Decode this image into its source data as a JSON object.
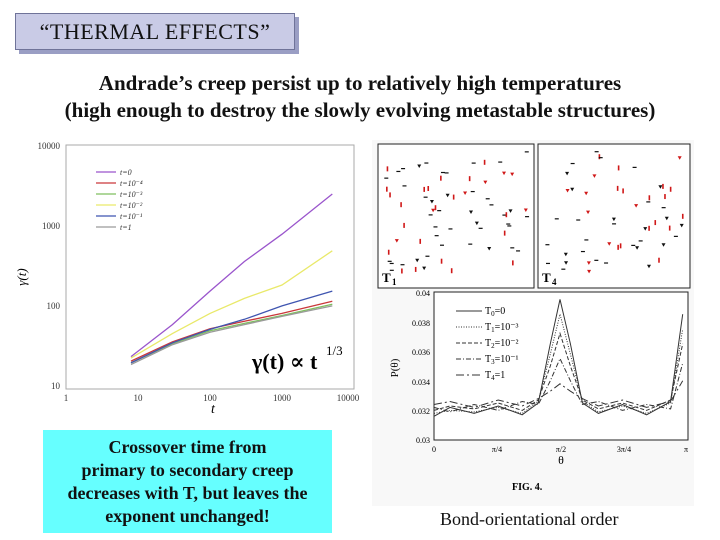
{
  "title": "“THERMAL EFFECTS”",
  "headline": {
    "line1": "Andrade’s creep persist up to relatively high temperatures",
    "line2": "(high enough to destroy the slowly evolving metastable structures)"
  },
  "creep_plot": {
    "ylabel": "γ(t)",
    "xlabel": "t",
    "y_ticks": [
      "10000",
      "1000",
      "100",
      "10"
    ],
    "x_ticks": [
      "1",
      "10",
      "100",
      "1000",
      "10000"
    ],
    "legend": [
      "t=0",
      "t=10⁻⁴",
      "t=10⁻³",
      "t=10⁻²",
      "t=10⁻¹",
      "t=1"
    ],
    "annotation": "γ(t) ∝ t",
    "annotation_exp": "1/3",
    "colors": {
      "t=0": "#9a55cc",
      "t=10⁻⁴": "#c9383a",
      "t=10⁻³": "#7fbf5f",
      "t=10⁻²": "#e9e96a",
      "t=10⁻¹": "#3f55b0",
      "t=1": "#9a9a9a"
    }
  },
  "snapshots": {
    "left_label": "T",
    "left_sub": "1",
    "right_label": "T",
    "right_sub": "4"
  },
  "order_plot": {
    "ylabel": "P(θ)",
    "xlabel": "θ",
    "y_ticks": [
      "0.04",
      "0.038",
      "0.036",
      "0.034",
      "0.032",
      "0.03"
    ],
    "x_ticks": [
      "0",
      "π/4",
      "π/2",
      "3π/4",
      "π"
    ],
    "legend": [
      {
        "label": "T",
        "sub": "0",
        "rest": "=0"
      },
      {
        "label": "T",
        "sub": "1",
        "rest": "=10⁻³"
      },
      {
        "label": "T",
        "sub": "2",
        "rest": "=10⁻²"
      },
      {
        "label": "T",
        "sub": "3",
        "rest": "=10⁻¹"
      },
      {
        "label": "T",
        "sub": "4",
        "rest": "=1"
      }
    ],
    "figure": "FIG. 4."
  },
  "callout": "Crossover time from\nprimary to secondary creep\ndecreases with T, but leaves the\nexponent unchanged!",
  "caption": "Bond-orientational order",
  "chart_data": [
    {
      "type": "line",
      "title": "",
      "xlabel": "t",
      "ylabel": "γ(t)",
      "xscale": "log",
      "yscale": "log",
      "xlim": [
        1,
        10000
      ],
      "ylim": [
        10,
        10000
      ],
      "series": [
        {
          "name": "t=0",
          "x": [
            8,
            30,
            100,
            300,
            1000,
            5000
          ],
          "y": [
            25,
            62,
            160,
            370,
            800,
            2500
          ]
        },
        {
          "name": "t=10⁻⁴",
          "x": [
            8,
            30,
            100,
            300,
            1000,
            5000
          ],
          "y": [
            22,
            38,
            55,
            68,
            85,
            120
          ]
        },
        {
          "name": "t=10⁻³",
          "x": [
            8,
            30,
            100,
            300,
            1000,
            5000
          ],
          "y": [
            21,
            36,
            52,
            64,
            80,
            110
          ]
        },
        {
          "name": "t=10⁻²",
          "x": [
            8,
            30,
            100,
            300,
            1000,
            5000
          ],
          "y": [
            24,
            48,
            85,
            130,
            190,
            500
          ]
        },
        {
          "name": "t=10⁻¹",
          "x": [
            8,
            30,
            100,
            300,
            1000,
            5000
          ],
          "y": [
            21,
            37,
            54,
            72,
            105,
            160
          ]
        },
        {
          "name": "t=1",
          "x": [
            8,
            30,
            100,
            300,
            1000,
            5000
          ],
          "y": [
            20,
            35,
            50,
            62,
            78,
            105
          ]
        }
      ]
    },
    {
      "type": "line",
      "title": "",
      "xlabel": "θ",
      "ylabel": "P(θ)",
      "xlim": [
        0,
        3.1416
      ],
      "ylim": [
        0.03,
        0.04
      ],
      "series": [
        {
          "name": "T₀=0",
          "x": [
            0,
            0.2,
            0.5,
            0.8,
            1.1,
            1.3,
            1.45,
            1.5708,
            1.7,
            1.85,
            2.05,
            2.35,
            2.65,
            2.95,
            3.1
          ],
          "y": [
            0.0316,
            0.0322,
            0.0318,
            0.0323,
            0.0317,
            0.0325,
            0.0365,
            0.0395,
            0.0365,
            0.0325,
            0.0318,
            0.0324,
            0.0317,
            0.0326,
            0.0385
          ]
        },
        {
          "name": "T₁=10⁻³",
          "x": [
            0,
            0.2,
            0.5,
            0.8,
            1.1,
            1.3,
            1.45,
            1.5708,
            1.7,
            1.85,
            2.05,
            2.35,
            2.65,
            2.95,
            3.1
          ],
          "y": [
            0.0318,
            0.032,
            0.0319,
            0.0322,
            0.0318,
            0.0326,
            0.0358,
            0.0385,
            0.0358,
            0.0326,
            0.0319,
            0.0323,
            0.0318,
            0.0325,
            0.0375
          ]
        },
        {
          "name": "T₂=10⁻²",
          "x": [
            0,
            0.2,
            0.5,
            0.8,
            1.1,
            1.3,
            1.45,
            1.5708,
            1.7,
            1.85,
            2.05,
            2.35,
            2.65,
            2.95,
            3.1
          ],
          "y": [
            0.032,
            0.0323,
            0.0321,
            0.0325,
            0.032,
            0.0327,
            0.035,
            0.0372,
            0.035,
            0.0327,
            0.0321,
            0.0325,
            0.032,
            0.0327,
            0.0365
          ]
        },
        {
          "name": "T₃=10⁻¹",
          "x": [
            0,
            0.2,
            0.5,
            0.8,
            1.1,
            1.3,
            1.45,
            1.5708,
            1.7,
            1.85,
            2.05,
            2.35,
            2.65,
            2.95,
            3.1
          ],
          "y": [
            0.0322,
            0.0319,
            0.0324,
            0.032,
            0.0326,
            0.0324,
            0.034,
            0.0355,
            0.034,
            0.0324,
            0.0326,
            0.032,
            0.0324,
            0.0321,
            0.0352
          ]
        },
        {
          "name": "T₄=1",
          "x": [
            0,
            0.2,
            0.5,
            0.8,
            1.1,
            1.3,
            1.45,
            1.5708,
            1.7,
            1.85,
            2.05,
            2.35,
            2.65,
            2.95,
            3.1
          ],
          "y": [
            0.0324,
            0.0326,
            0.0322,
            0.0327,
            0.0323,
            0.0328,
            0.0333,
            0.0338,
            0.0333,
            0.0328,
            0.0323,
            0.0327,
            0.0322,
            0.0326,
            0.034
          ]
        }
      ]
    }
  ]
}
